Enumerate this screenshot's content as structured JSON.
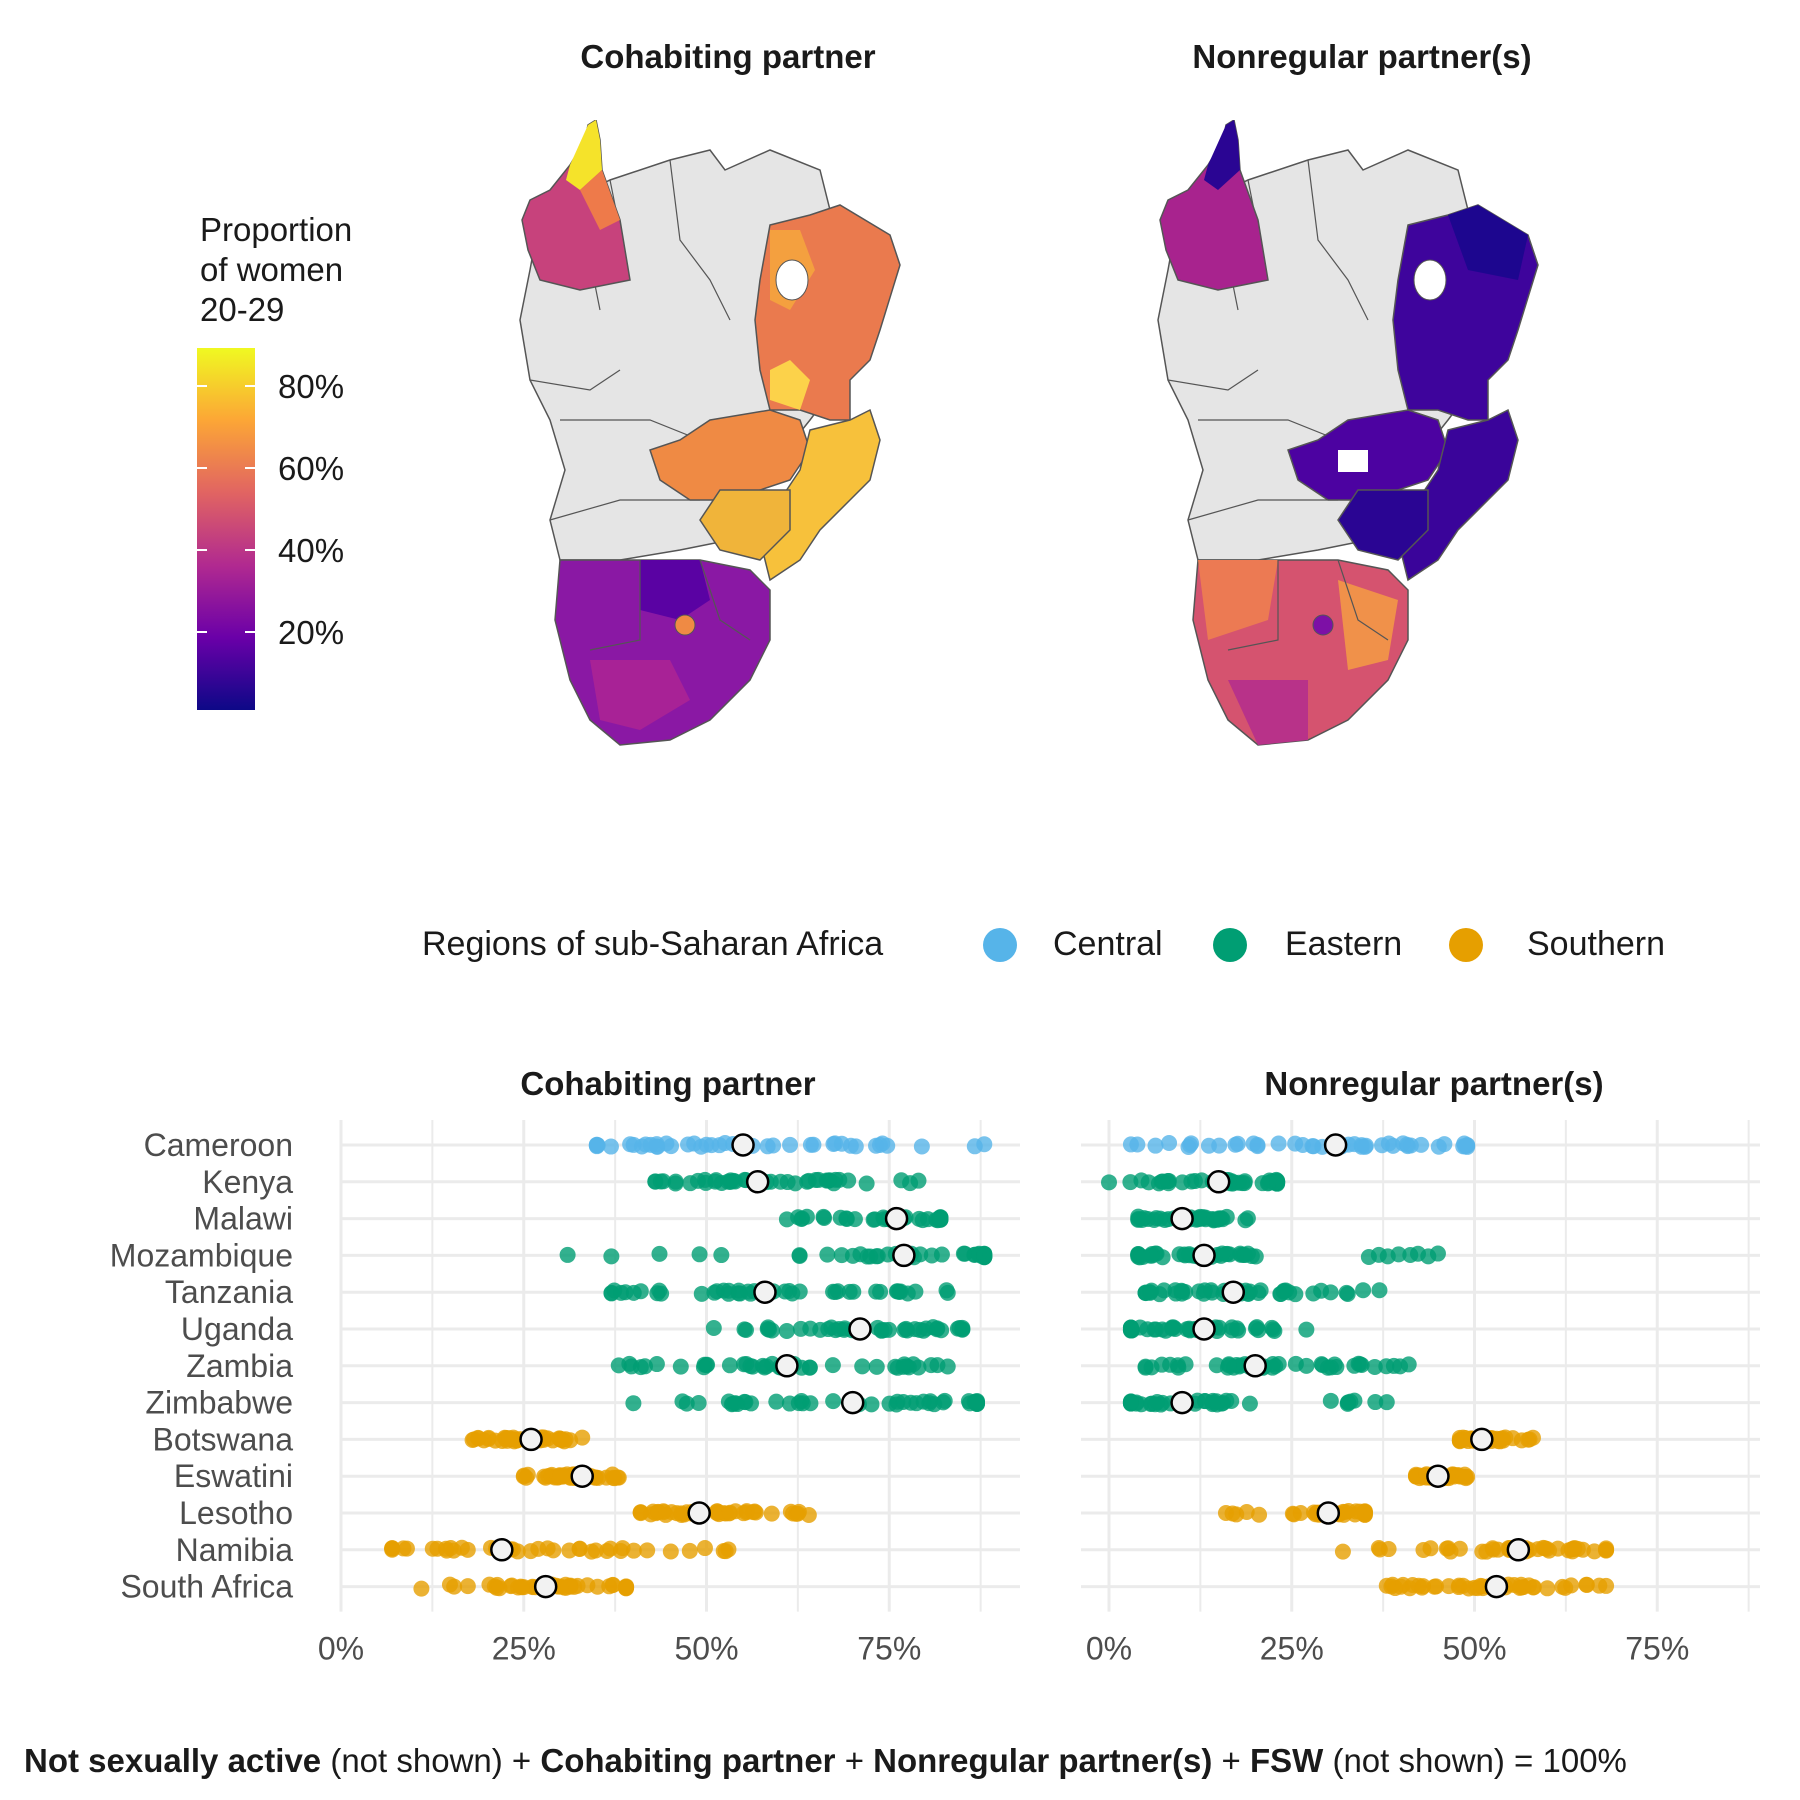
{
  "maps": {
    "left_title": "Cohabiting partner",
    "right_title": "Nonregular partner(s)",
    "legend": {
      "title_lines": [
        "Proportion",
        "of women",
        "20-29"
      ],
      "ticks": [
        "80%",
        "60%",
        "40%",
        "20%"
      ],
      "colors": [
        "#0d0887",
        "#6a00a8",
        "#b12a90",
        "#e16462",
        "#fca636",
        "#f0f921"
      ],
      "no_data_color": "#e5e5e5"
    }
  },
  "region_legend": {
    "title": "Regions of sub-Saharan Africa",
    "items": [
      {
        "label": "Central",
        "color": "#56B4E9"
      },
      {
        "label": "Eastern",
        "color": "#009E73"
      },
      {
        "label": "Southern",
        "color": "#E69F00"
      }
    ]
  },
  "chart_data": {
    "type": "scatter",
    "facets": [
      "Cohabiting partner",
      "Nonregular partner(s)"
    ],
    "x_ticks": [
      "0%",
      "25%",
      "50%",
      "75%"
    ],
    "xlim": [
      0,
      0.92
    ],
    "countries": [
      {
        "name": "Cameroon",
        "region": "Central",
        "cohab_mean": 0.55,
        "cohab_range": [
          0.35,
          0.88
        ],
        "nonreg_mean": 0.31,
        "nonreg_range": [
          0.03,
          0.49
        ]
      },
      {
        "name": "Kenya",
        "region": "Eastern",
        "cohab_mean": 0.57,
        "cohab_range": [
          0.43,
          0.79
        ],
        "nonreg_mean": 0.15,
        "nonreg_range": [
          0.0,
          0.23
        ]
      },
      {
        "name": "Malawi",
        "region": "Eastern",
        "cohab_mean": 0.76,
        "cohab_range": [
          0.61,
          0.82
        ],
        "nonreg_mean": 0.1,
        "nonreg_range": [
          0.04,
          0.19
        ]
      },
      {
        "name": "Mozambique",
        "region": "Eastern",
        "cohab_mean": 0.77,
        "cohab_range": [
          0.31,
          0.88
        ],
        "nonreg_mean": 0.13,
        "nonreg_range": [
          0.04,
          0.45
        ]
      },
      {
        "name": "Tanzania",
        "region": "Eastern",
        "cohab_mean": 0.58,
        "cohab_range": [
          0.37,
          0.83
        ],
        "nonreg_mean": 0.17,
        "nonreg_range": [
          0.05,
          0.37
        ]
      },
      {
        "name": "Uganda",
        "region": "Eastern",
        "cohab_mean": 0.71,
        "cohab_range": [
          0.51,
          0.85
        ],
        "nonreg_mean": 0.13,
        "nonreg_range": [
          0.03,
          0.27
        ]
      },
      {
        "name": "Zambia",
        "region": "Eastern",
        "cohab_mean": 0.61,
        "cohab_range": [
          0.38,
          0.83
        ],
        "nonreg_mean": 0.2,
        "nonreg_range": [
          0.05,
          0.41
        ]
      },
      {
        "name": "Zimbabwe",
        "region": "Eastern",
        "cohab_mean": 0.7,
        "cohab_range": [
          0.4,
          0.87
        ],
        "nonreg_mean": 0.1,
        "nonreg_range": [
          0.03,
          0.38
        ]
      },
      {
        "name": "Botswana",
        "region": "Southern",
        "cohab_mean": 0.26,
        "cohab_range": [
          0.18,
          0.33
        ],
        "nonreg_mean": 0.51,
        "nonreg_range": [
          0.48,
          0.58
        ]
      },
      {
        "name": "Eswatini",
        "region": "Southern",
        "cohab_mean": 0.33,
        "cohab_range": [
          0.25,
          0.38
        ],
        "nonreg_mean": 0.45,
        "nonreg_range": [
          0.42,
          0.49
        ]
      },
      {
        "name": "Lesotho",
        "region": "Southern",
        "cohab_mean": 0.49,
        "cohab_range": [
          0.41,
          0.64
        ],
        "nonreg_mean": 0.3,
        "nonreg_range": [
          0.16,
          0.35
        ]
      },
      {
        "name": "Namibia",
        "region": "Southern",
        "cohab_mean": 0.22,
        "cohab_range": [
          0.07,
          0.53
        ],
        "nonreg_mean": 0.56,
        "nonreg_range": [
          0.32,
          0.68
        ]
      },
      {
        "name": "South Africa",
        "region": "Southern",
        "cohab_mean": 0.28,
        "cohab_range": [
          0.11,
          0.39
        ],
        "nonreg_mean": 0.53,
        "nonreg_range": [
          0.38,
          0.68
        ]
      }
    ]
  },
  "footnote": {
    "p1_bold": "Not sexually active",
    "p1": " (not shown) + ",
    "p2_bold": "Cohabiting partner",
    "p2": " + ",
    "p3_bold": "Nonregular partner(s)",
    "p3": " + ",
    "p4_bold": "FSW",
    "p4": " (not shown) = 100%"
  }
}
